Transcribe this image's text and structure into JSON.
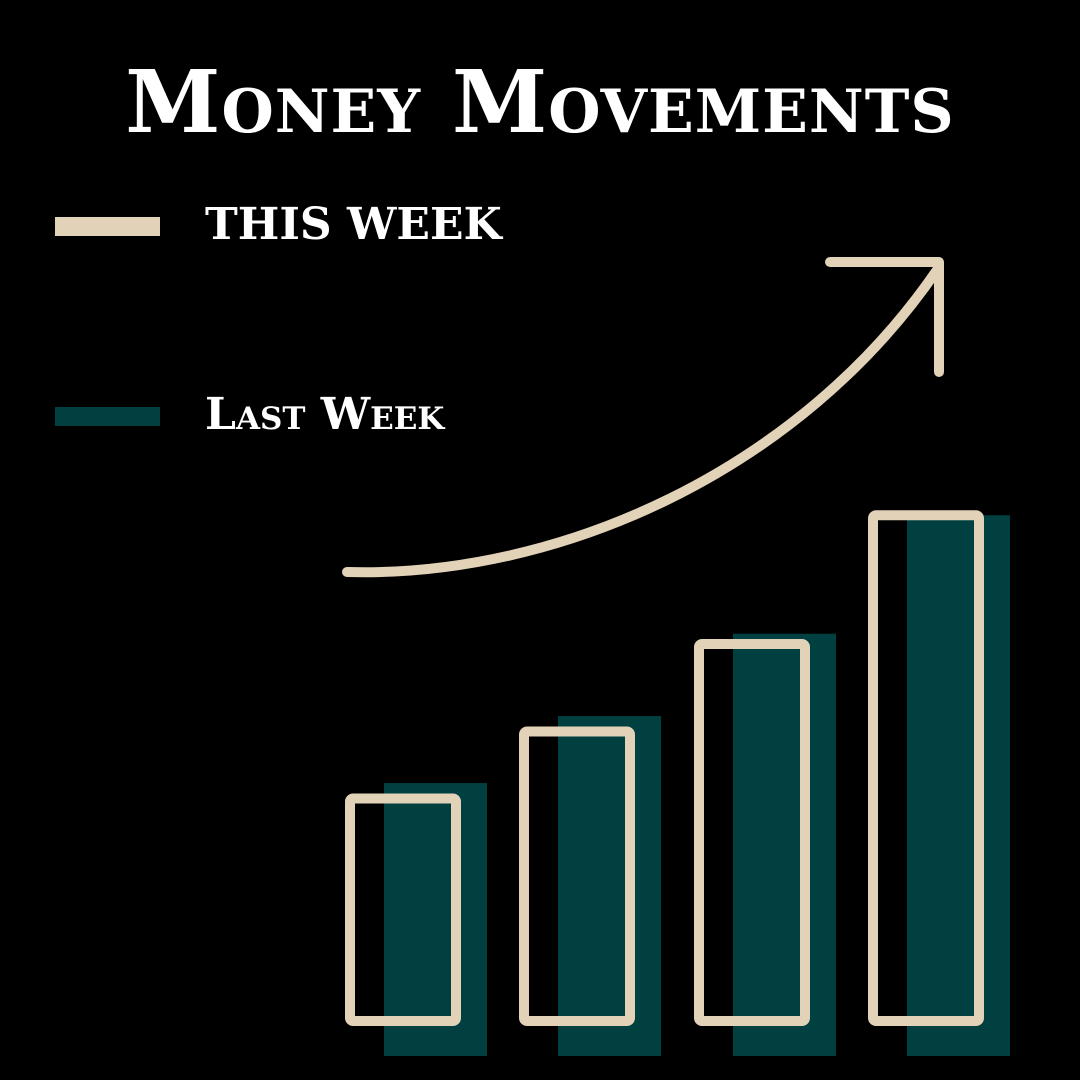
{
  "title": "Money Movements",
  "colors": {
    "background": "#000000",
    "this_week": "#e2d2b8",
    "last_week": "#004040",
    "text": "#ffffff"
  },
  "legend": [
    {
      "label": "THIS WEEK",
      "series": "This Week",
      "style": "outline"
    },
    {
      "label": "Last Week",
      "series": "Last Week",
      "style": "filled"
    }
  ],
  "decorations": {
    "trend_arrow": "arrow-up-right-icon"
  },
  "chart_data": {
    "type": "bar",
    "title": "Money Movements",
    "xlabel": "",
    "ylabel": "",
    "categories": [
      "",
      "",
      "",
      ""
    ],
    "series": [
      {
        "name": "THIS WEEK",
        "values": [
          5,
          6.3,
          8,
          10.5
        ]
      },
      {
        "name": "Last Week",
        "values": [
          5.3,
          6.6,
          8.2,
          10.5
        ]
      }
    ],
    "ylim": [
      0,
      11
    ],
    "grid": false,
    "legend_position": "top-left"
  }
}
